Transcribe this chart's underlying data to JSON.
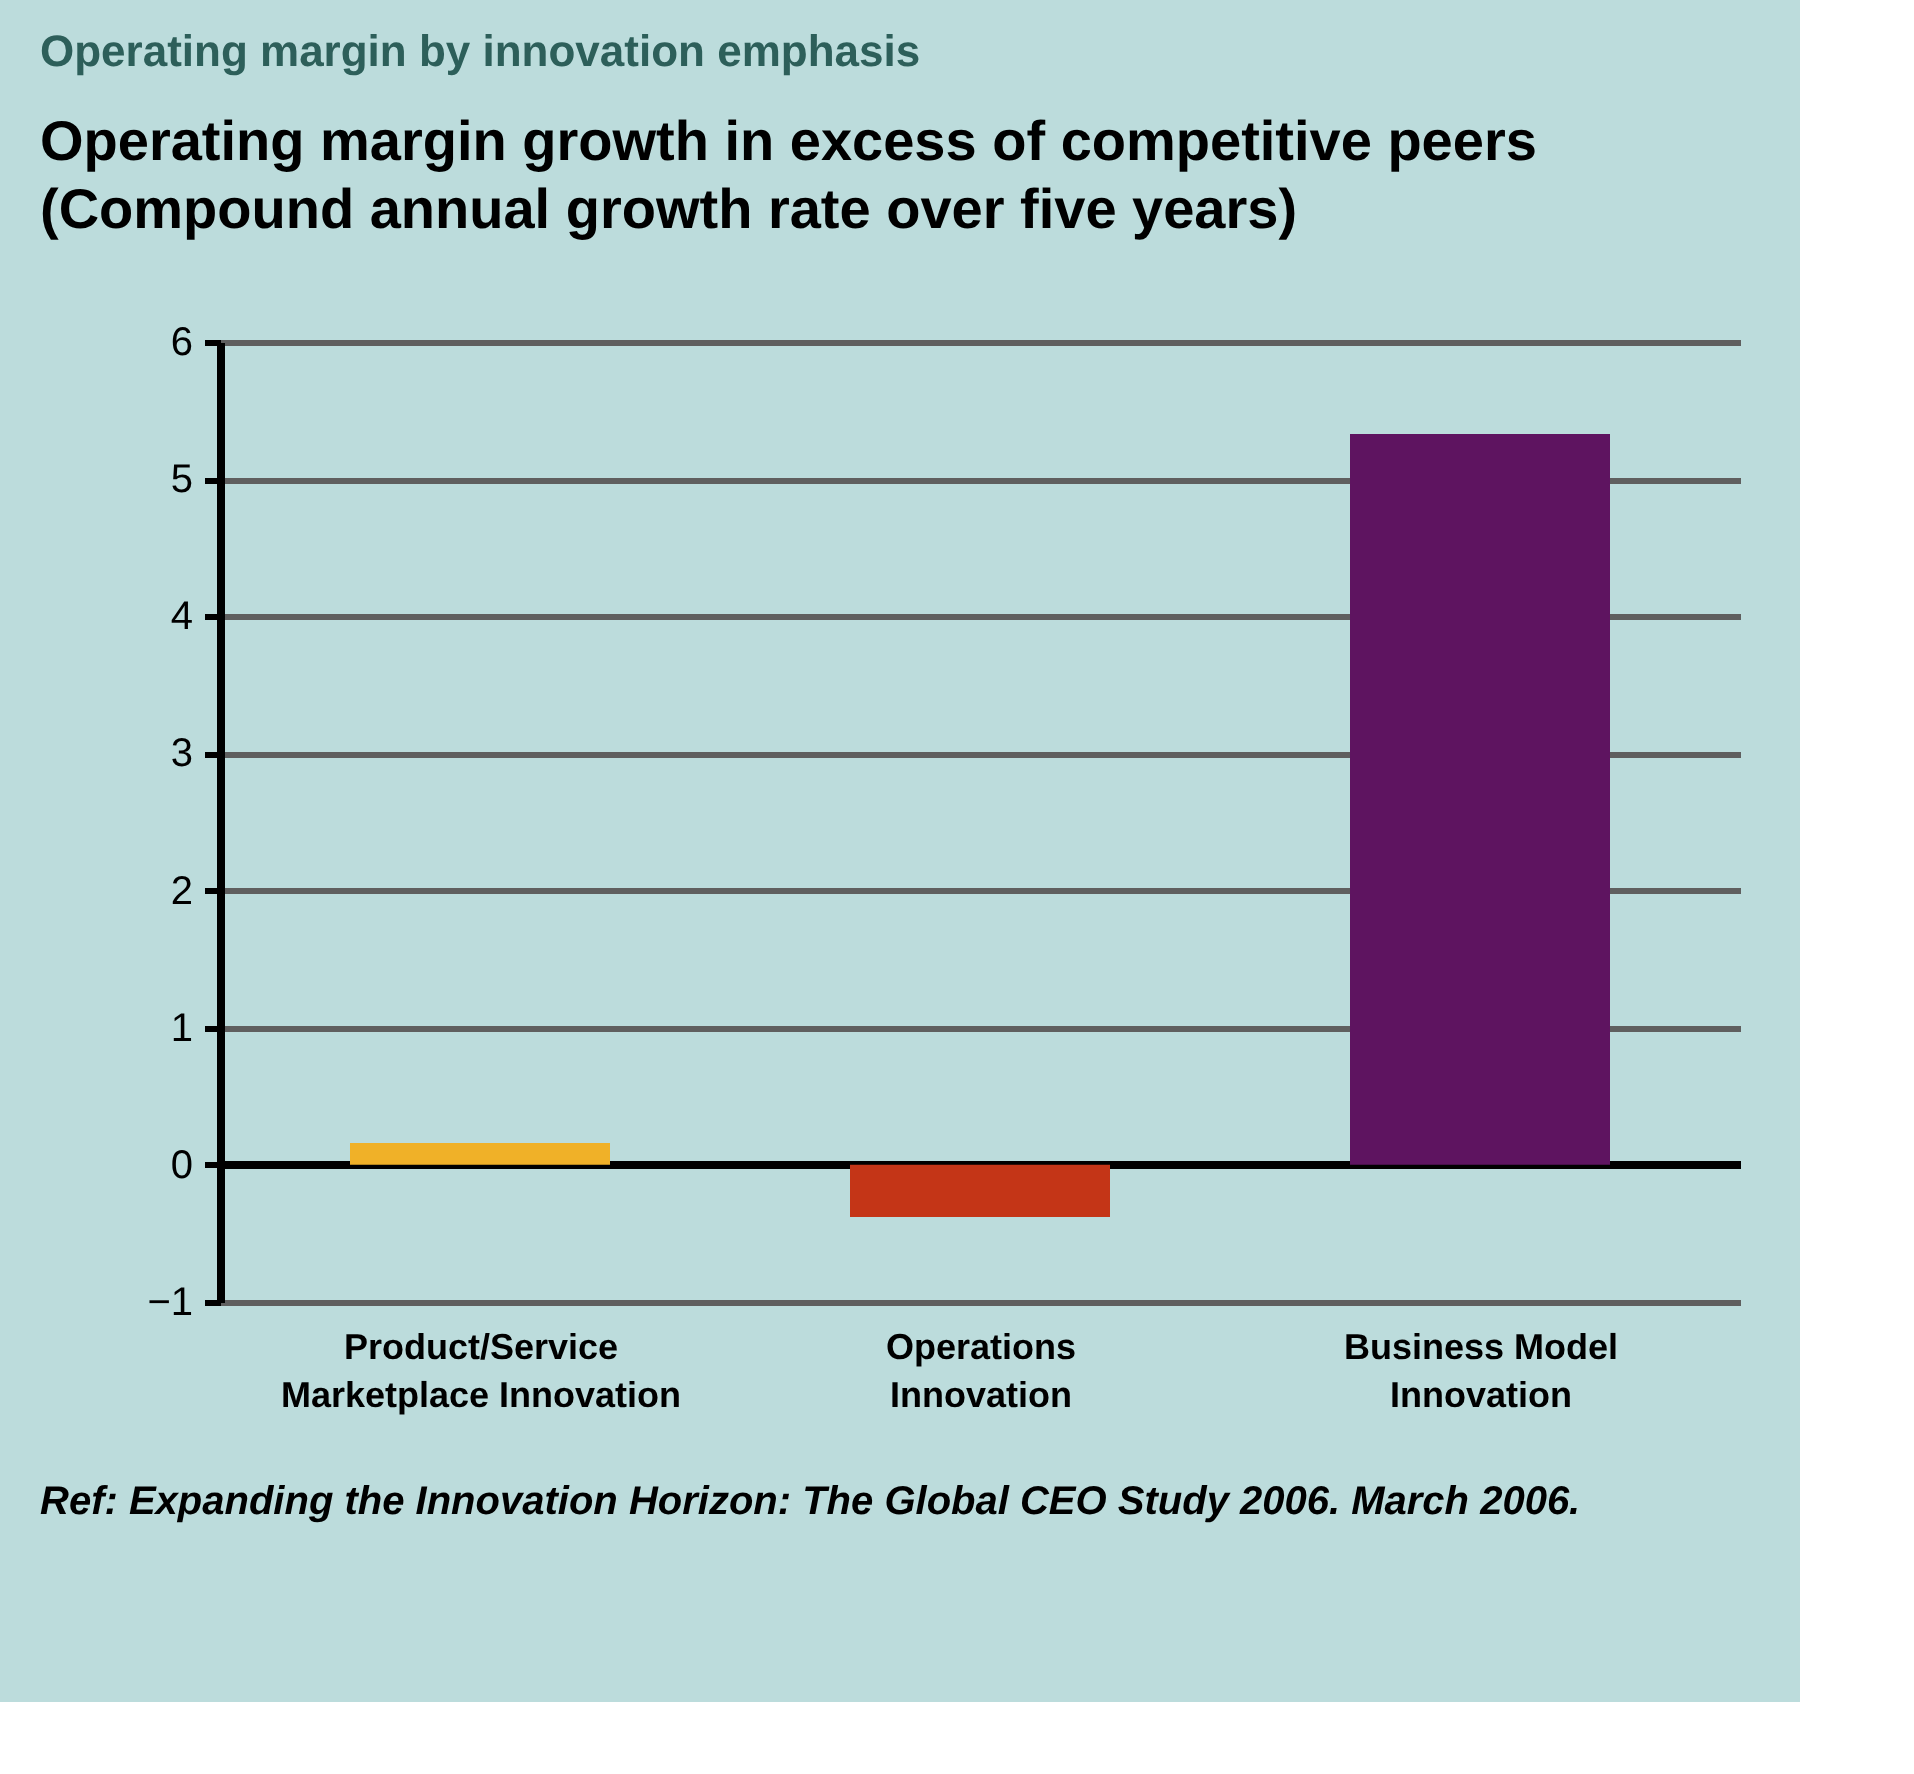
{
  "chart_data": {
    "type": "bar",
    "title": "Operating margin by innovation emphasis",
    "subtitle": [
      "Operating margin growth in excess of competitive peers",
      "(Compound annual growth rate over five years)"
    ],
    "categories": [
      "Product/Service Marketplace Innovation",
      "Operations Innovation",
      "Business Model Innovation"
    ],
    "values": [
      0.16,
      -0.38,
      5.33
    ],
    "colors": [
      "#f0b128",
      "#c43517",
      "#5e1460"
    ],
    "ylim": [
      -1,
      6
    ],
    "yticks": [
      -1,
      0,
      1,
      2,
      3,
      4,
      5,
      6
    ],
    "grid": "y",
    "annotations": [
      "Ref: Expanding the Innovation Horizon: The Global CEO Study 2006. March 2006."
    ]
  }
}
